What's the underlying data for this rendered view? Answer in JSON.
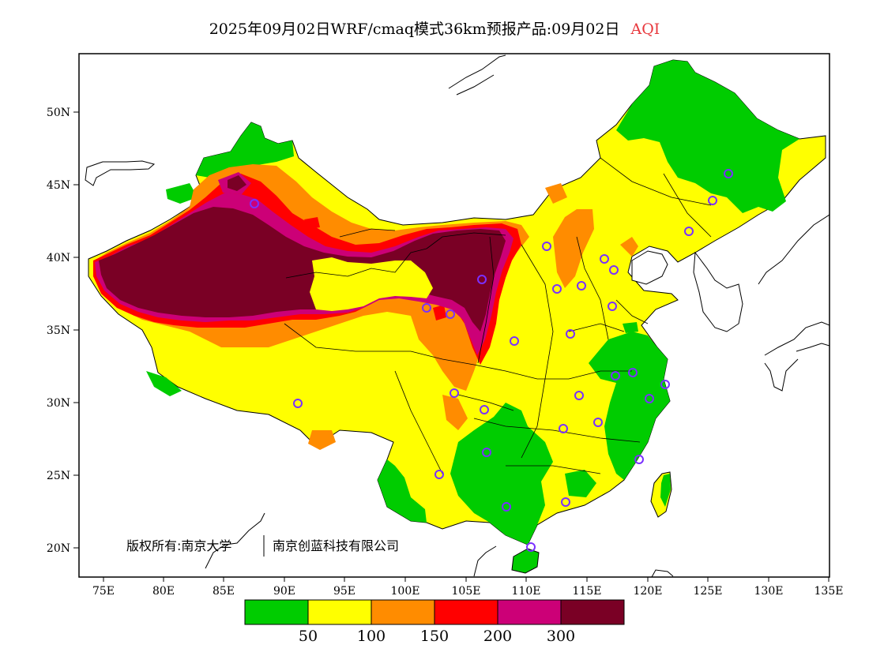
{
  "title": {
    "text": "2025年09月02日WRF/cmaq模式36km预报产品:09月02日",
    "metric": "AQI"
  },
  "axes": {
    "lon_ticks": [
      "75E",
      "80E",
      "85E",
      "90E",
      "95E",
      "100E",
      "105E",
      "110E",
      "115E",
      "120E",
      "125E",
      "130E",
      "135E"
    ],
    "lat_ticks": [
      "20N",
      "25N",
      "30N",
      "35N",
      "40N",
      "45N",
      "50N"
    ]
  },
  "copyright": {
    "left": "版权所有:南京大学",
    "right": "南京创蓝科技有限公司"
  },
  "legend": {
    "colors": [
      "#00cc00",
      "#ffff00",
      "#ff8c00",
      "#ff0000",
      "#cc0077",
      "#7a0025"
    ],
    "labels": [
      "50",
      "100",
      "150",
      "200",
      "300"
    ]
  },
  "colors": {
    "good": "#00cc00",
    "moderate": "#ffff00",
    "usg": "#ff8c00",
    "unhealthy": "#ff0000",
    "very_unhealthy": "#cc0077",
    "hazardous": "#7a0025",
    "station_marker": "#7a30ff"
  }
}
